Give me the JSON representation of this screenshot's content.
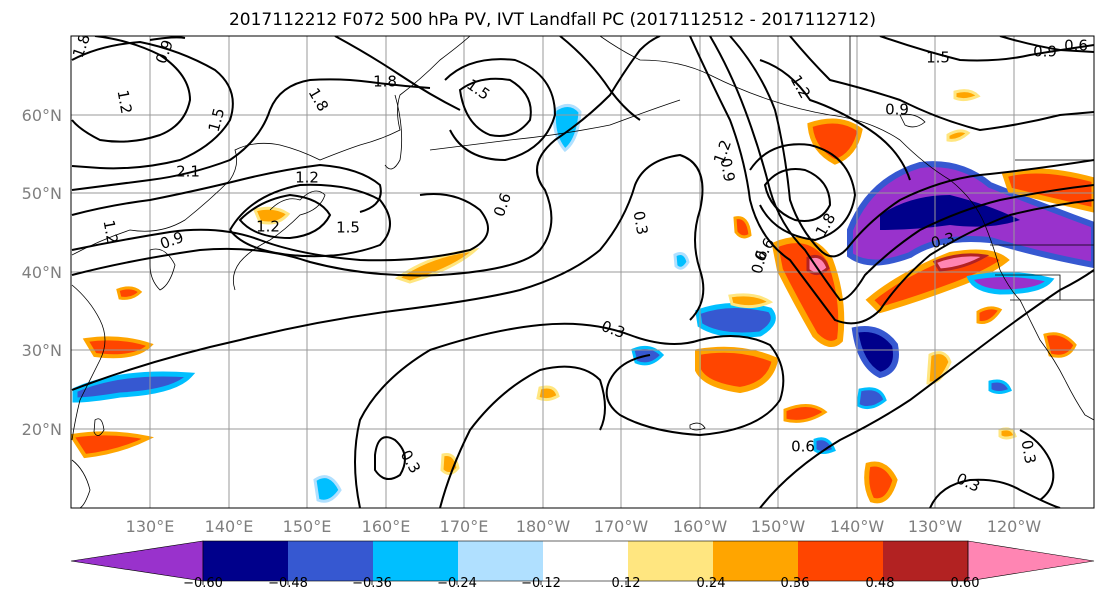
{
  "title": "2017112212 F072 500 hPa PV, IVT Landfall PC (2017112512 - 2017112712)",
  "lon_labels": [
    "130°E",
    "140°E",
    "150°E",
    "160°E",
    "170°E",
    "180°W",
    "170°W",
    "160°W",
    "150°W",
    "140°W",
    "130°W",
    "120°W"
  ],
  "lat_labels": [
    "60°N",
    "50°N",
    "40°N",
    "30°N",
    "20°N"
  ],
  "colorbar": {
    "ticks": [
      "−0.60",
      "−0.48",
      "−0.36",
      "−0.24",
      "−0.12",
      "0.12",
      "0.24",
      "0.36",
      "0.48",
      "0.60"
    ],
    "colors": [
      "#9932cc",
      "#00008b",
      "#3658d1",
      "#00bfff",
      "#b0e0ff",
      "#ffffff",
      "#ffe680",
      "#ffa500",
      "#ff4500",
      "#b22222",
      "#ff85b3"
    ]
  },
  "contour_labels": [
    "1.8",
    "0.9",
    "1.2",
    "1.5",
    "1.8",
    "2.1",
    "1.2",
    "1.5",
    "1.2",
    "1.8",
    "0.9",
    "1.2",
    "1.5",
    "0.6",
    "0.3",
    "0.3",
    "0.6",
    "0.3",
    "0.6",
    "0.3",
    "0.3",
    "0.3",
    "1.5",
    "0.9",
    "0.6",
    "1.2",
    "0.9",
    "1.8",
    "0.9",
    "0.6",
    "1.2"
  ]
}
